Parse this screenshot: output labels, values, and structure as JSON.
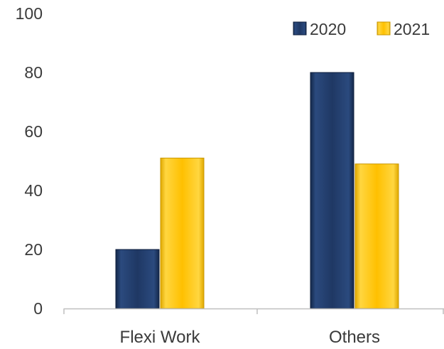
{
  "chart_data": {
    "type": "bar",
    "title": "",
    "xlabel": "",
    "ylabel": "",
    "categories": [
      "Flexi Work",
      "Others"
    ],
    "series": [
      {
        "name": "2020",
        "values": [
          20,
          80
        ],
        "color": "#1f3864"
      },
      {
        "name": "2021",
        "values": [
          51,
          49
        ],
        "color": "#ffc000"
      }
    ],
    "ylim": [
      0,
      100
    ],
    "yticks": [
      "0",
      "20",
      "40",
      "60",
      "80",
      "100"
    ],
    "grid": false,
    "legend": "top-right"
  }
}
